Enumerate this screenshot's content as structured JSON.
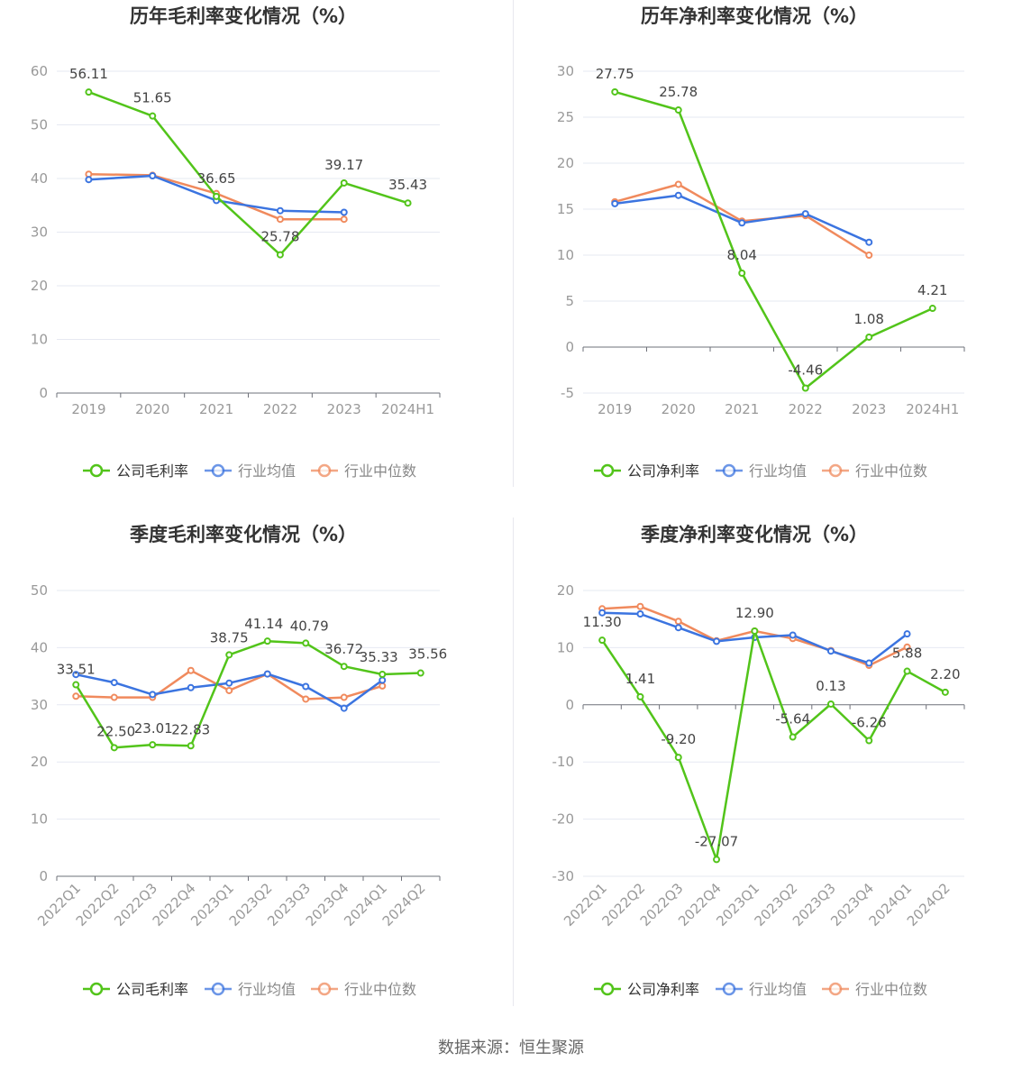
{
  "source": "数据来源：恒生聚源",
  "colors": {
    "company": "#52c41a",
    "avg": "#3b74e0",
    "median": "#f08a5d",
    "grid": "#e6e9f2",
    "axis": "#6e7079",
    "text": "#333333",
    "label": "#999999"
  },
  "legend": {
    "company_gross": "公司毛利率",
    "company_net": "公司净利率",
    "avg": "行业均值",
    "median": "行业中位数"
  },
  "chart_data": [
    {
      "type": "line",
      "title": "历年毛利率变化情况（%）",
      "categories": [
        "2019",
        "2020",
        "2021",
        "2022",
        "2023",
        "2024H1"
      ],
      "ylim": [
        0,
        60
      ],
      "yticks": [
        0,
        10,
        20,
        30,
        40,
        50,
        60
      ],
      "legend_position": "bottom",
      "series": [
        {
          "name": "公司毛利率",
          "key": "company",
          "values": [
            56.11,
            51.65,
            36.65,
            25.78,
            39.17,
            35.43
          ],
          "labels": [
            "56.11",
            "51.65",
            "36.65",
            "25.78",
            "39.17",
            "35.43"
          ]
        },
        {
          "name": "行业均值",
          "key": "avg",
          "values": [
            39.8,
            40.5,
            35.9,
            34.0,
            33.7,
            null
          ]
        },
        {
          "name": "行业中位数",
          "key": "median",
          "values": [
            40.8,
            40.6,
            37.2,
            32.4,
            32.4,
            null
          ]
        }
      ]
    },
    {
      "type": "line",
      "title": "历年净利率变化情况（%）",
      "categories": [
        "2019",
        "2020",
        "2021",
        "2022",
        "2023",
        "2024H1"
      ],
      "ylim": [
        -5,
        30
      ],
      "yticks": [
        -5,
        0,
        5,
        10,
        15,
        20,
        25,
        30
      ],
      "legend_position": "bottom",
      "series": [
        {
          "name": "公司净利率",
          "key": "company",
          "values": [
            27.75,
            25.78,
            8.04,
            -4.46,
            1.08,
            4.21
          ],
          "labels": [
            "27.75",
            "25.78",
            "8.04",
            "-4.46",
            "1.08",
            "4.21"
          ]
        },
        {
          "name": "行业均值",
          "key": "avg",
          "values": [
            15.6,
            16.5,
            13.5,
            14.5,
            11.4,
            null
          ]
        },
        {
          "name": "行业中位数",
          "key": "median",
          "values": [
            15.8,
            17.7,
            13.7,
            14.3,
            10.0,
            null
          ]
        }
      ]
    },
    {
      "type": "line",
      "title": "季度毛利率变化情况（%）",
      "categories": [
        "2022Q1",
        "2022Q2",
        "2022Q3",
        "2022Q4",
        "2023Q1",
        "2023Q2",
        "2023Q3",
        "2023Q4",
        "2024Q1",
        "2024Q2"
      ],
      "ylim": [
        0,
        50
      ],
      "yticks": [
        0,
        10,
        20,
        30,
        40,
        50
      ],
      "legend_position": "bottom",
      "series": [
        {
          "name": "公司毛利率",
          "key": "company",
          "values": [
            33.51,
            22.5,
            23.01,
            22.83,
            38.75,
            41.14,
            40.79,
            36.72,
            35.33,
            35.56
          ],
          "labels": [
            "33.51",
            "22.50",
            "23.01",
            "22.83",
            "38.75",
            "41.14",
            "40.79",
            "36.72",
            "35.33",
            "35.56"
          ]
        },
        {
          "name": "行业均值",
          "key": "avg",
          "values": [
            35.3,
            33.9,
            31.8,
            33.0,
            33.8,
            35.4,
            33.2,
            29.4,
            34.3,
            null
          ]
        },
        {
          "name": "行业中位数",
          "key": "median",
          "values": [
            31.5,
            31.3,
            31.3,
            36.0,
            32.5,
            35.4,
            31.0,
            31.3,
            33.3,
            null
          ]
        }
      ]
    },
    {
      "type": "line",
      "title": "季度净利率变化情况（%）",
      "categories": [
        "2022Q1",
        "2022Q2",
        "2022Q3",
        "2022Q4",
        "2023Q1",
        "2023Q2",
        "2023Q3",
        "2023Q4",
        "2024Q1",
        "2024Q2"
      ],
      "ylim": [
        -30,
        20
      ],
      "yticks": [
        -30,
        -20,
        -10,
        0,
        10,
        20
      ],
      "legend_position": "bottom",
      "series": [
        {
          "name": "公司净利率",
          "key": "company",
          "values": [
            11.3,
            1.41,
            -9.2,
            -27.07,
            12.9,
            -5.64,
            0.13,
            -6.26,
            5.88,
            2.2
          ],
          "labels": [
            "11.30",
            "1.41",
            "-9.20",
            "-27.07",
            "12.90",
            "-5.64",
            "0.13",
            "-6.26",
            "5.88",
            "2.20"
          ]
        },
        {
          "name": "行业均值",
          "key": "avg",
          "values": [
            16.1,
            15.9,
            13.5,
            11.1,
            11.8,
            12.2,
            9.4,
            7.3,
            12.4,
            null
          ]
        },
        {
          "name": "行业中位数",
          "key": "median",
          "values": [
            16.8,
            17.2,
            14.6,
            11.2,
            12.9,
            11.6,
            9.5,
            6.9,
            10.1,
            null
          ]
        }
      ]
    }
  ]
}
